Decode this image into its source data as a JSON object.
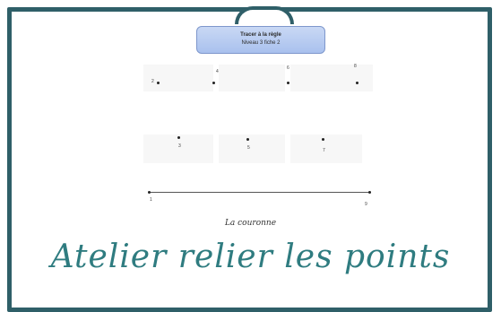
{
  "worksheet": {
    "title": "Tracer à la règle",
    "subtitle": "Niveau 3 fiche 2",
    "points": [
      {
        "label": "2"
      },
      {
        "label": "4"
      },
      {
        "label": "6"
      },
      {
        "label": "8"
      },
      {
        "label": "3"
      },
      {
        "label": "5"
      },
      {
        "label": "7"
      },
      {
        "label": "1"
      },
      {
        "label": "9"
      }
    ],
    "caption": "La couronne"
  },
  "banner": {
    "text": "Atelier relier les points"
  },
  "colors": {
    "frame": "#2f5f68",
    "script_text": "#2f7c80",
    "title_box": "#a9c1ee"
  }
}
